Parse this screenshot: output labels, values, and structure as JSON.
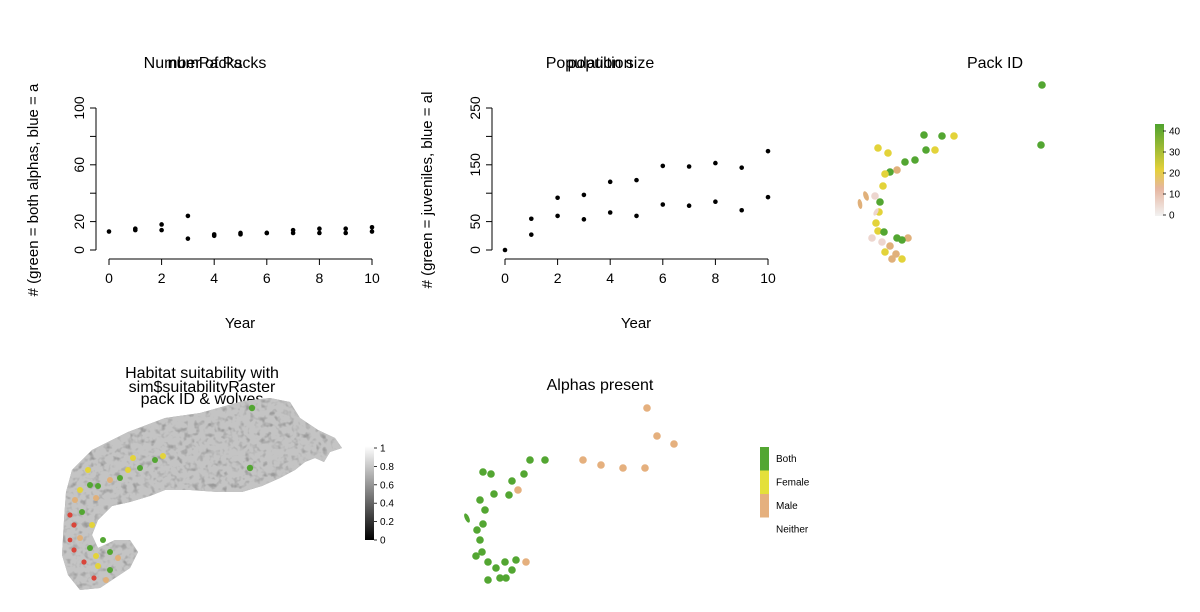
{
  "chart_data": [
    {
      "type": "scatter",
      "title_overlap": [
        "Number of Packs",
        "numPacks"
      ],
      "xlabel": "Year",
      "ylabel": "# (green = both alphas, blue = a",
      "xlim": [
        0,
        10
      ],
      "ylim": [
        0,
        100
      ],
      "xticks": [
        "0",
        "2",
        "4",
        "6",
        "8",
        "10"
      ],
      "yticks": [
        "0",
        "20",
        "60",
        "100"
      ],
      "series": [
        {
          "x": [
            0,
            1,
            2,
            3,
            4,
            5,
            6,
            7,
            8,
            9,
            10
          ],
          "y": [
            13,
            15,
            18,
            24,
            11,
            12,
            12,
            14,
            15,
            15,
            16
          ]
        },
        {
          "x": [
            1,
            2,
            3,
            4,
            5,
            6,
            7,
            8,
            9,
            10
          ],
          "y": [
            14,
            14,
            8,
            10,
            11,
            12,
            12,
            12,
            12,
            13
          ]
        }
      ]
    },
    {
      "type": "scatter",
      "title_overlap": [
        "Population size",
        "popultion"
      ],
      "xlabel": "Year",
      "ylabel": "# (green = juveniles, blue = al",
      "xlim": [
        0,
        10
      ],
      "ylim": [
        0,
        250
      ],
      "xticks": [
        "0",
        "2",
        "4",
        "6",
        "8",
        "10"
      ],
      "yticks": [
        "0",
        "50",
        "150",
        "250"
      ],
      "series": [
        {
          "x": [
            0,
            1,
            2,
            3,
            4,
            5,
            6,
            7,
            8,
            9,
            10
          ],
          "y": [
            0,
            55,
            92,
            97,
            120,
            123,
            148,
            147,
            153,
            145,
            174
          ]
        },
        {
          "x": [
            1,
            2,
            3,
            4,
            5,
            6,
            7,
            8,
            9,
            10
          ],
          "y": [
            27,
            60,
            54,
            66,
            60,
            80,
            78,
            85,
            70,
            93
          ]
        }
      ]
    },
    {
      "type": "map",
      "title": "Pack ID",
      "legend_ticks": [
        "40",
        "30",
        "20",
        "10",
        "0"
      ],
      "colors": [
        "#53a632",
        "#e3d33a",
        "#e0b07a",
        "#f0f0f0"
      ]
    },
    {
      "type": "map",
      "title_lines": [
        "Habitat suitability with",
        "pack ID & wolves"
      ],
      "title_overlap": "sim$suitabilityRaster",
      "legend_ticks": [
        "1",
        "0.8",
        "0.6",
        "0.4",
        "0.2",
        "0"
      ]
    },
    {
      "type": "map",
      "title": "Alphas present",
      "legend": [
        {
          "label": "Both",
          "color": "#53a632"
        },
        {
          "label": "Female",
          "color": "#e4e03a"
        },
        {
          "label": "Male",
          "color": "#e5b07e"
        },
        {
          "label": "Neither",
          "color": "#ffffff"
        }
      ]
    }
  ]
}
